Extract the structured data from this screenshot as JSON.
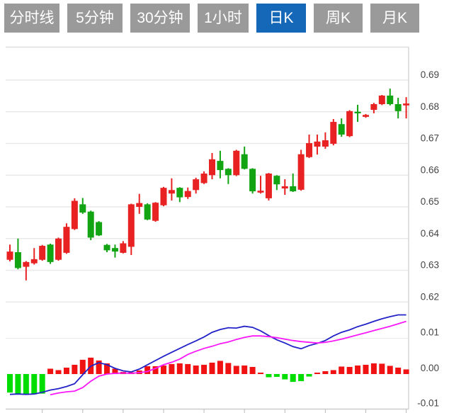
{
  "tabs": {
    "selected_index": 4,
    "items": [
      {
        "label": "分时线"
      },
      {
        "label": "5分钟"
      },
      {
        "label": "30分钟"
      },
      {
        "label": "1小时"
      },
      {
        "label": "日K"
      },
      {
        "label": "周K"
      },
      {
        "label": "月K"
      }
    ]
  },
  "colors": {
    "tab_bg": "#9a9a9a",
    "tab_selected_bg": "#1567b8",
    "tab_text": "#ffffff",
    "candle_up": "#e82222",
    "candle_down": "#12a412",
    "hist_up": "#f01212",
    "hist_down": "#00dd00",
    "dif_line": "#2222c8",
    "dea_line": "#f818f8",
    "gridline": "#e9e9e9",
    "border": "#cccccc",
    "axis_text": "#444444"
  },
  "chart_data": {
    "type": "candlestick+macd",
    "title": "",
    "grid": "horizontal-only",
    "price_axis": {
      "side": "right",
      "range": [
        0.62,
        0.7
      ],
      "ticks": [
        {
          "value": 0.69,
          "label": "0.69"
        },
        {
          "value": 0.68,
          "label": "0.68"
        },
        {
          "value": 0.67,
          "label": "0.67"
        },
        {
          "value": 0.66,
          "label": "0.66"
        },
        {
          "value": 0.65,
          "label": "0.65"
        },
        {
          "value": 0.64,
          "label": "0.64"
        },
        {
          "value": 0.63,
          "label": "0.63"
        },
        {
          "value": 0.62,
          "label": "0.62"
        }
      ]
    },
    "macd_axis": {
      "side": "right",
      "range": [
        -0.0125,
        0.0175
      ],
      "ticks": [
        {
          "value": 0.01,
          "label": "0.01"
        },
        {
          "value": 0.0,
          "label": "0.00"
        },
        {
          "value": -0.01,
          "label": "-0.01"
        }
      ]
    },
    "candle_format": "[open, high, low, close] — red = close >= open (CN convention)",
    "candles": [
      [
        0.6333,
        0.6381,
        0.6328,
        0.6359
      ],
      [
        0.6357,
        0.64,
        0.6303,
        0.6307
      ],
      [
        0.6311,
        0.6329,
        0.6268,
        0.6326
      ],
      [
        0.6322,
        0.637,
        0.6318,
        0.6335
      ],
      [
        0.6333,
        0.638,
        0.633,
        0.6377
      ],
      [
        0.6381,
        0.6384,
        0.632,
        0.6326
      ],
      [
        0.6333,
        0.6403,
        0.633,
        0.64
      ],
      [
        0.6355,
        0.6448,
        0.6352,
        0.6437
      ],
      [
        0.643,
        0.6527,
        0.6427,
        0.6519
      ],
      [
        0.6508,
        0.6528,
        0.6478,
        0.6482
      ],
      [
        0.6485,
        0.6488,
        0.6395,
        0.6403
      ],
      [
        0.6452,
        0.6455,
        0.6408,
        0.641
      ],
      [
        0.638,
        0.6383,
        0.6357,
        0.6363
      ],
      [
        0.637,
        0.6381,
        0.634,
        0.6359
      ],
      [
        0.6355,
        0.6392,
        0.6353,
        0.6385
      ],
      [
        0.6374,
        0.651,
        0.6348,
        0.6508
      ],
      [
        0.65,
        0.6541,
        0.6478,
        0.6512
      ],
      [
        0.6508,
        0.6511,
        0.6458,
        0.646
      ],
      [
        0.6456,
        0.6515,
        0.6453,
        0.6513
      ],
      [
        0.6505,
        0.6563,
        0.6502,
        0.656
      ],
      [
        0.6542,
        0.659,
        0.652,
        0.6553
      ],
      [
        0.656,
        0.6562,
        0.6515,
        0.653
      ],
      [
        0.6531,
        0.6561,
        0.6525,
        0.655
      ],
      [
        0.6553,
        0.6592,
        0.6542,
        0.6587
      ],
      [
        0.6575,
        0.6612,
        0.6572,
        0.6605
      ],
      [
        0.66,
        0.667,
        0.6587,
        0.665
      ],
      [
        0.6645,
        0.6677,
        0.659,
        0.6616
      ],
      [
        0.662,
        0.6622,
        0.6572,
        0.66
      ],
      [
        0.66,
        0.668,
        0.6597,
        0.6677
      ],
      [
        0.6666,
        0.669,
        0.6618,
        0.662
      ],
      [
        0.662,
        0.6622,
        0.6542,
        0.6549
      ],
      [
        0.6545,
        0.6598,
        0.6542,
        0.6551
      ],
      [
        0.6527,
        0.6607,
        0.652,
        0.6605
      ],
      [
        0.6598,
        0.66,
        0.6553,
        0.6571
      ],
      [
        0.6558,
        0.6587,
        0.6538,
        0.6565
      ],
      [
        0.6565,
        0.6605,
        0.6547,
        0.6549
      ],
      [
        0.6554,
        0.668,
        0.6551,
        0.6666
      ],
      [
        0.6657,
        0.6728,
        0.6654,
        0.6701
      ],
      [
        0.669,
        0.6728,
        0.6665,
        0.6706
      ],
      [
        0.669,
        0.6735,
        0.6683,
        0.671
      ],
      [
        0.6699,
        0.6777,
        0.6694,
        0.6768
      ],
      [
        0.6761,
        0.6779,
        0.6721,
        0.6728
      ],
      [
        0.6723,
        0.6805,
        0.672,
        0.6802
      ],
      [
        0.68,
        0.6822,
        0.6768,
        0.6795
      ],
      [
        0.6784,
        0.6793,
        0.6781,
        0.679
      ],
      [
        0.6806,
        0.6828,
        0.6795,
        0.6824
      ],
      [
        0.6824,
        0.6853,
        0.6821,
        0.6851
      ],
      [
        0.6851,
        0.6873,
        0.682,
        0.6824
      ],
      [
        0.6824,
        0.6844,
        0.6779,
        0.6802
      ],
      [
        0.682,
        0.6846,
        0.6779,
        0.6826
      ]
    ],
    "macd": {
      "hist": [
        -0.0052,
        -0.0056,
        -0.0058,
        -0.0057,
        -0.0055,
        0.0015,
        0.0011,
        0.0018,
        0.0026,
        0.004,
        0.0046,
        0.0038,
        0.003,
        0.0015,
        0.0006,
        0.0005,
        0.001,
        0.0022,
        0.0022,
        0.0024,
        0.0028,
        0.003,
        0.0028,
        0.0024,
        0.0026,
        0.0032,
        0.0037,
        0.0031,
        0.0023,
        0.0024,
        0.002,
        0.0001,
        -0.0009,
        -0.0008,
        -0.0015,
        -0.0022,
        -0.002,
        -0.0007,
        0.0001,
        0.0008,
        0.0011,
        0.0021,
        0.002,
        0.0024,
        0.0026,
        0.003,
        0.0029,
        0.0023,
        0.0018,
        0.0013
      ],
      "dif": [
        -0.0057,
        -0.0056,
        -0.0057,
        -0.0056,
        -0.0051,
        -0.0045,
        -0.0041,
        -0.0035,
        -0.0027,
        -0.0002,
        0.0022,
        0.0032,
        0.0026,
        0.0016,
        0.0009,
        0.0006,
        0.0014,
        0.0026,
        0.0038,
        0.005,
        0.0061,
        0.0072,
        0.0083,
        0.0093,
        0.0104,
        0.0117,
        0.0125,
        0.013,
        0.0129,
        0.0134,
        0.0131,
        0.0121,
        0.0108,
        0.0096,
        0.0087,
        0.0077,
        0.0071,
        0.008,
        0.0086,
        0.0094,
        0.0107,
        0.0117,
        0.0124,
        0.0133,
        0.014,
        0.0148,
        0.0155,
        0.0161,
        0.0166,
        0.0166
      ],
      "dea": [
        null,
        null,
        null,
        null,
        null,
        -0.0058,
        -0.0053,
        -0.005,
        -0.0048,
        -0.0038,
        -0.002,
        -0.0006,
        0.0,
        0.0002,
        0.0003,
        0.0002,
        0.0004,
        0.0007,
        0.0016,
        0.0026,
        0.0033,
        0.0042,
        0.0055,
        0.0064,
        0.0072,
        0.0078,
        0.0085,
        0.009,
        0.0097,
        0.0103,
        0.0107,
        0.0107,
        0.0105,
        0.0102,
        0.0098,
        0.0094,
        0.0091,
        0.0089,
        0.0087,
        0.0089,
        0.0093,
        0.0098,
        0.0104,
        0.011,
        0.0116,
        0.0122,
        0.0128,
        0.0134,
        0.0141,
        0.0148
      ]
    },
    "x_axis": {
      "tick_every_n_candles": 5,
      "labels_visible": false
    }
  }
}
